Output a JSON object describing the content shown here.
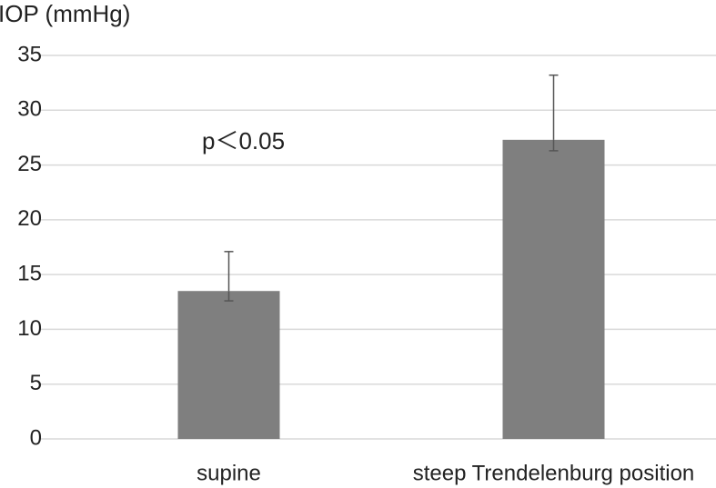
{
  "chart_data": {
    "type": "bar",
    "title": "IOP (mmHg)",
    "annotation": "p＜0.05",
    "categories": [
      "supine",
      "steep Trendelenburg position"
    ],
    "values": [
      13.5,
      27.3
    ],
    "error_upper": [
      3.6,
      5.9
    ],
    "error_lower": [
      0.9,
      1.0
    ],
    "color": "#7f7f7f",
    "ylim": [
      0,
      35
    ],
    "yticks": [
      0,
      5,
      10,
      15,
      20,
      25,
      30,
      35
    ],
    "grid": true
  }
}
